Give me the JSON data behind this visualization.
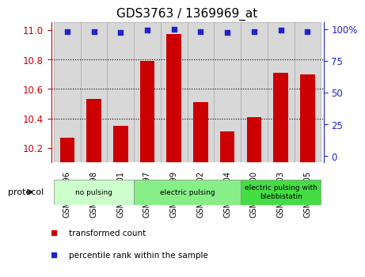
{
  "title": "GDS3763 / 1369969_at",
  "samples": [
    "GSM398196",
    "GSM398198",
    "GSM398201",
    "GSM398197",
    "GSM398199",
    "GSM398202",
    "GSM398204",
    "GSM398200",
    "GSM398203",
    "GSM398205"
  ],
  "bar_values": [
    10.27,
    10.53,
    10.35,
    10.79,
    10.97,
    10.51,
    10.31,
    10.41,
    10.71,
    10.7
  ],
  "percentile_values": [
    98,
    98,
    97,
    99,
    100,
    98,
    97,
    98,
    99,
    98
  ],
  "ylim_left": [
    10.1,
    11.05
  ],
  "ylim_right": [
    -5,
    105
  ],
  "yticks_left": [
    10.2,
    10.4,
    10.6,
    10.8,
    11.0
  ],
  "yticks_right": [
    0,
    25,
    50,
    75,
    100
  ],
  "ytick_right_labels": [
    "0",
    "25",
    "50",
    "75",
    "100%"
  ],
  "bar_color": "#cc0000",
  "dot_color": "#2222cc",
  "grid_color": "#000000",
  "col_bg_color": "#d8d8d8",
  "protocol_groups": [
    {
      "label": "no pulsing",
      "start": 0,
      "end": 3,
      "color": "#ccffcc"
    },
    {
      "label": "electric pulsing",
      "start": 3,
      "end": 7,
      "color": "#88ee88"
    },
    {
      "label": "electric pulsing with\nblebbistatin",
      "start": 7,
      "end": 10,
      "color": "#44dd44"
    }
  ],
  "legend_items": [
    {
      "label": "transformed count",
      "color": "#cc0000"
    },
    {
      "label": "percentile rank within the sample",
      "color": "#2222cc"
    }
  ],
  "xlabel_protocol": "protocol",
  "left_axis_color": "#cc0000",
  "right_axis_color": "#2222cc",
  "title_fontsize": 11,
  "tick_fontsize": 8.5,
  "bar_width": 0.55
}
